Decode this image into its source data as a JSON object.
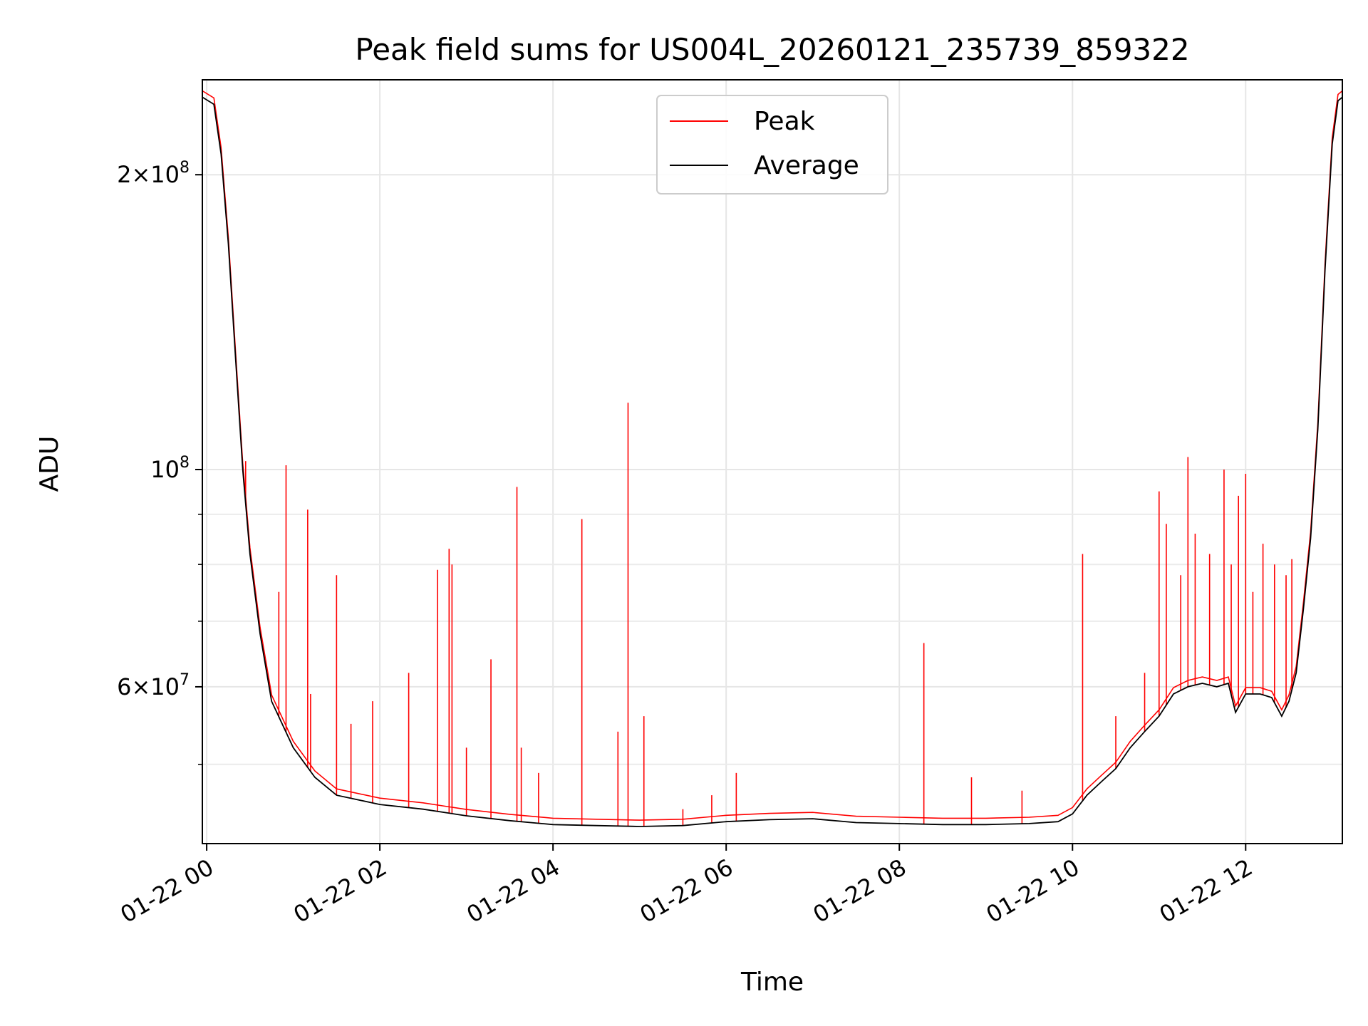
{
  "chart_data": {
    "type": "line",
    "title": "Peak field sums for US004L_20260121_235739_859322",
    "xlabel": "Time",
    "ylabel": "ADU",
    "yscale": "log",
    "grid": true,
    "legend_position": "top-center",
    "x_range": [
      "2026-01-21 23:57",
      "2026-01-22 13:07"
    ],
    "ylim": [
      41500000,
      250000000
    ],
    "x_ticks": [
      "01-22 00",
      "01-22 02",
      "01-22 04",
      "01-22 06",
      "01-22 08",
      "01-22 10",
      "01-22 12"
    ],
    "y_major_ticks": [
      {
        "value": 60000000,
        "mantissa": "6",
        "exponent": "7"
      },
      {
        "value": 100000000,
        "mantissa": "",
        "exponent": "8"
      },
      {
        "value": 200000000,
        "mantissa": "2",
        "exponent": "8"
      }
    ],
    "y_minor_ticks": [
      50000000,
      70000000,
      80000000,
      90000000
    ],
    "series": [
      {
        "name": "Average",
        "color": "#000000",
        "points": [
          [
            "2026-01-21 23:57",
            240000000
          ],
          [
            "2026-01-22 00:05",
            236000000
          ],
          [
            "2026-01-22 00:10",
            210000000
          ],
          [
            "2026-01-22 00:15",
            170000000
          ],
          [
            "2026-01-22 00:20",
            130000000
          ],
          [
            "2026-01-22 00:25",
            100000000
          ],
          [
            "2026-01-22 00:30",
            82000000
          ],
          [
            "2026-01-22 00:37",
            68000000
          ],
          [
            "2026-01-22 00:45",
            58000000
          ],
          [
            "2026-01-22 01:00",
            52000000
          ],
          [
            "2026-01-22 01:15",
            48500000
          ],
          [
            "2026-01-22 01:30",
            46500000
          ],
          [
            "2026-01-22 02:00",
            45500000
          ],
          [
            "2026-01-22 02:30",
            45000000
          ],
          [
            "2026-01-22 03:00",
            44300000
          ],
          [
            "2026-01-22 03:30",
            43800000
          ],
          [
            "2026-01-22 04:00",
            43400000
          ],
          [
            "2026-01-22 04:30",
            43300000
          ],
          [
            "2026-01-22 05:00",
            43200000
          ],
          [
            "2026-01-22 05:30",
            43300000
          ],
          [
            "2026-01-22 06:00",
            43700000
          ],
          [
            "2026-01-22 06:30",
            43900000
          ],
          [
            "2026-01-22 07:00",
            44000000
          ],
          [
            "2026-01-22 07:30",
            43600000
          ],
          [
            "2026-01-22 08:00",
            43500000
          ],
          [
            "2026-01-22 08:30",
            43400000
          ],
          [
            "2026-01-22 09:00",
            43400000
          ],
          [
            "2026-01-22 09:30",
            43500000
          ],
          [
            "2026-01-22 09:50",
            43700000
          ],
          [
            "2026-01-22 10:00",
            44500000
          ],
          [
            "2026-01-22 10:10",
            46500000
          ],
          [
            "2026-01-22 10:20",
            48000000
          ],
          [
            "2026-01-22 10:30",
            49500000
          ],
          [
            "2026-01-22 10:40",
            52000000
          ],
          [
            "2026-01-22 10:50",
            54000000
          ],
          [
            "2026-01-22 11:00",
            56000000
          ],
          [
            "2026-01-22 11:10",
            59000000
          ],
          [
            "2026-01-22 11:20",
            60000000
          ],
          [
            "2026-01-22 11:30",
            60500000
          ],
          [
            "2026-01-22 11:40",
            60000000
          ],
          [
            "2026-01-22 11:48",
            60500000
          ],
          [
            "2026-01-22 11:53",
            56500000
          ],
          [
            "2026-01-22 12:00",
            59000000
          ],
          [
            "2026-01-22 12:10",
            59000000
          ],
          [
            "2026-01-22 12:18",
            58500000
          ],
          [
            "2026-01-22 12:25",
            56000000
          ],
          [
            "2026-01-22 12:30",
            58000000
          ],
          [
            "2026-01-22 12:35",
            62000000
          ],
          [
            "2026-01-22 12:40",
            72000000
          ],
          [
            "2026-01-22 12:45",
            85000000
          ],
          [
            "2026-01-22 12:50",
            110000000
          ],
          [
            "2026-01-22 12:55",
            160000000
          ],
          [
            "2026-01-22 13:00",
            215000000
          ],
          [
            "2026-01-22 13:04",
            238000000
          ],
          [
            "2026-01-22 13:07",
            240000000
          ]
        ]
      },
      {
        "name": "Peak",
        "color": "#ff0000",
        "spikes": [
          [
            "2026-01-22 00:27",
            102000000
          ],
          [
            "2026-01-22 00:35",
            72000000
          ],
          [
            "2026-01-22 00:50",
            75000000
          ],
          [
            "2026-01-22 00:55",
            101000000
          ],
          [
            "2026-01-22 01:10",
            91000000
          ],
          [
            "2026-01-22 01:12",
            59000000
          ],
          [
            "2026-01-22 01:30",
            78000000
          ],
          [
            "2026-01-22 01:40",
            55000000
          ],
          [
            "2026-01-22 01:55",
            58000000
          ],
          [
            "2026-01-22 02:20",
            62000000
          ],
          [
            "2026-01-22 02:40",
            79000000
          ],
          [
            "2026-01-22 02:48",
            83000000
          ],
          [
            "2026-01-22 02:50",
            80000000
          ],
          [
            "2026-01-22 03:00",
            52000000
          ],
          [
            "2026-01-22 03:17",
            64000000
          ],
          [
            "2026-01-22 03:35",
            96000000
          ],
          [
            "2026-01-22 03:38",
            52000000
          ],
          [
            "2026-01-22 03:50",
            49000000
          ],
          [
            "2026-01-22 04:20",
            89000000
          ],
          [
            "2026-01-22 04:45",
            54000000
          ],
          [
            "2026-01-22 04:52",
            117000000
          ],
          [
            "2026-01-22 05:03",
            56000000
          ],
          [
            "2026-01-22 05:30",
            45000000
          ],
          [
            "2026-01-22 05:50",
            46500000
          ],
          [
            "2026-01-22 06:07",
            49000000
          ],
          [
            "2026-01-22 08:17",
            66500000
          ],
          [
            "2026-01-22 08:50",
            48500000
          ],
          [
            "2026-01-22 09:25",
            47000000
          ],
          [
            "2026-01-22 10:07",
            82000000
          ],
          [
            "2026-01-22 10:30",
            56000000
          ],
          [
            "2026-01-22 10:50",
            62000000
          ],
          [
            "2026-01-22 11:00",
            95000000
          ],
          [
            "2026-01-22 11:05",
            88000000
          ],
          [
            "2026-01-22 11:15",
            78000000
          ],
          [
            "2026-01-22 11:20",
            103000000
          ],
          [
            "2026-01-22 11:25",
            86000000
          ],
          [
            "2026-01-22 11:35",
            82000000
          ],
          [
            "2026-01-22 11:45",
            100000000
          ],
          [
            "2026-01-22 11:50",
            80000000
          ],
          [
            "2026-01-22 11:55",
            94000000
          ],
          [
            "2026-01-22 12:00",
            99000000
          ],
          [
            "2026-01-22 12:05",
            75000000
          ],
          [
            "2026-01-22 12:12",
            84000000
          ],
          [
            "2026-01-22 12:20",
            80000000
          ],
          [
            "2026-01-22 12:28",
            78000000
          ],
          [
            "2026-01-22 12:32",
            81000000
          ]
        ]
      }
    ]
  }
}
